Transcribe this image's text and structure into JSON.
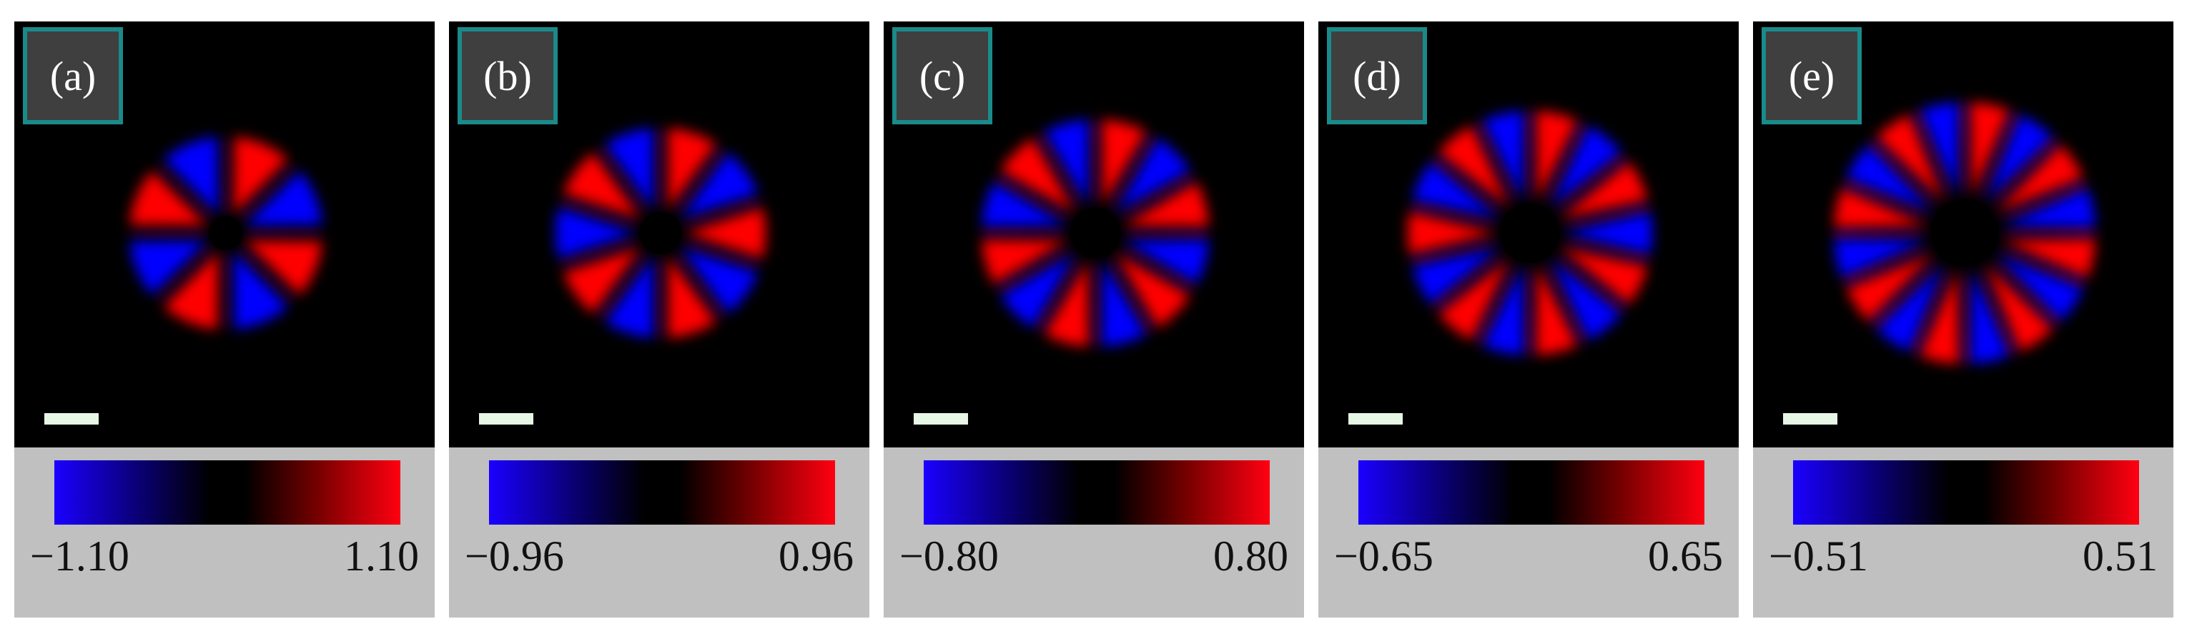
{
  "panels": [
    {
      "label": "(a)",
      "min_label": "−1.10",
      "max_label": "1.10",
      "lobes": 8
    },
    {
      "label": "(b)",
      "min_label": "−0.96",
      "max_label": "0.96",
      "lobes": 10
    },
    {
      "label": "(c)",
      "min_label": "−0.80",
      "max_label": "0.80",
      "lobes": 12
    },
    {
      "label": "(d)",
      "min_label": "−0.65",
      "max_label": "0.65",
      "lobes": 14
    },
    {
      "label": "(e)",
      "min_label": "−0.51",
      "max_label": "0.51",
      "lobes": 16
    }
  ],
  "colors": {
    "positive": "#ff0000",
    "negative": "#0000ff",
    "background": "#000000",
    "colorbar_bg": "#c0c0c0",
    "label_border": "#1a8a8a",
    "scalebar": "#e6f7e6"
  }
}
